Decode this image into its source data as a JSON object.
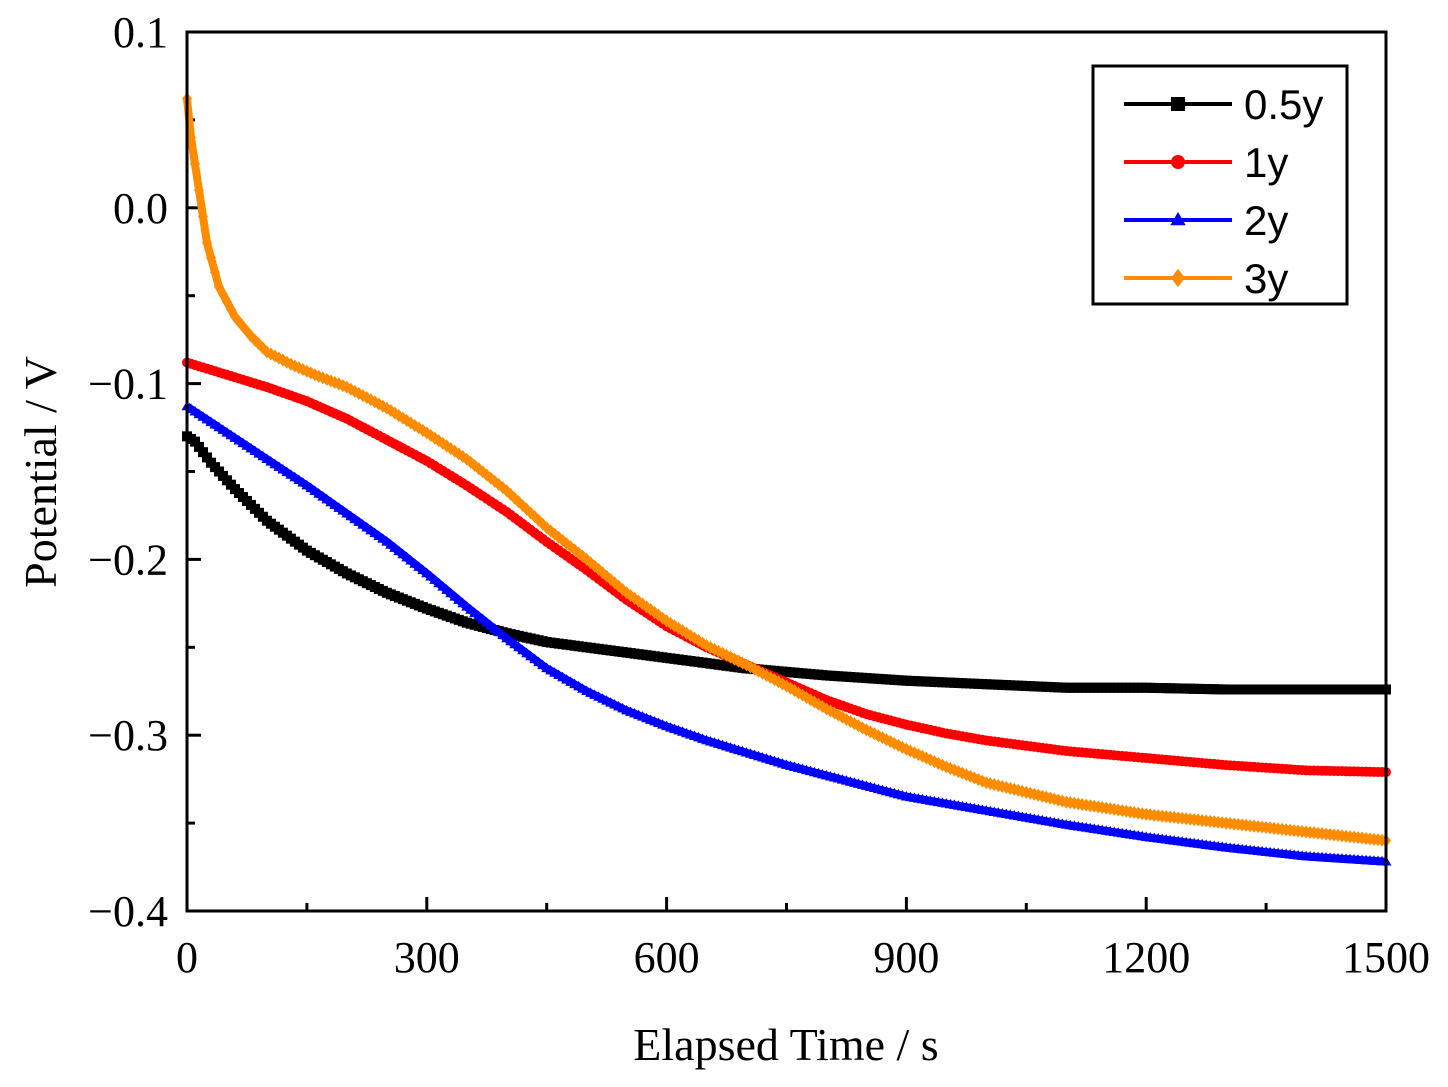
{
  "chart_data": {
    "type": "line",
    "title": "",
    "xlabel": "Elapsed Time / s",
    "ylabel": "Potential / V",
    "xlim": [
      0,
      1500
    ],
    "ylim": [
      -0.4,
      0.1
    ],
    "xticks": [
      0,
      300,
      600,
      900,
      1200,
      1500
    ],
    "xtick_labels": [
      "0",
      "300",
      "600",
      "900",
      "1200",
      "1500"
    ],
    "yticks": [
      -0.4,
      -0.3,
      -0.2,
      -0.1,
      0.0,
      0.1
    ],
    "ytick_labels": [
      "−0.4",
      "−0.3",
      "−0.2",
      "−0.1",
      "0.0",
      "0.1"
    ],
    "grid": false,
    "legend_position": "top-right",
    "series": [
      {
        "name": "0.5y",
        "color": "#000000",
        "marker": "square",
        "x": [
          0,
          10,
          30,
          60,
          100,
          150,
          200,
          250,
          300,
          350,
          400,
          450,
          500,
          600,
          700,
          800,
          900,
          1000,
          1100,
          1200,
          1300,
          1400,
          1500
        ],
        "y": [
          -0.13,
          -0.133,
          -0.145,
          -0.16,
          -0.178,
          -0.195,
          -0.208,
          -0.219,
          -0.228,
          -0.236,
          -0.242,
          -0.247,
          -0.25,
          -0.256,
          -0.262,
          -0.266,
          -0.269,
          -0.271,
          -0.273,
          -0.273,
          -0.274,
          -0.274,
          -0.274
        ]
      },
      {
        "name": "1y",
        "color": "#ff0000",
        "marker": "circle",
        "x": [
          0,
          50,
          100,
          150,
          200,
          250,
          300,
          350,
          400,
          450,
          500,
          550,
          600,
          650,
          700,
          750,
          800,
          850,
          900,
          950,
          1000,
          1100,
          1200,
          1300,
          1400,
          1500
        ],
        "y": [
          -0.088,
          -0.095,
          -0.102,
          -0.11,
          -0.12,
          -0.132,
          -0.144,
          -0.158,
          -0.173,
          -0.19,
          -0.206,
          -0.223,
          -0.238,
          -0.25,
          -0.26,
          -0.27,
          -0.28,
          -0.288,
          -0.294,
          -0.299,
          -0.303,
          -0.309,
          -0.313,
          -0.317,
          -0.32,
          -0.321
        ]
      },
      {
        "name": "2y",
        "color": "#0000ff",
        "marker": "triangle",
        "x": [
          0,
          50,
          100,
          150,
          200,
          250,
          300,
          350,
          400,
          450,
          500,
          550,
          600,
          650,
          700,
          750,
          800,
          850,
          900,
          1000,
          1100,
          1200,
          1300,
          1400,
          1500
        ],
        "y": [
          -0.113,
          -0.128,
          -0.143,
          -0.158,
          -0.174,
          -0.19,
          -0.208,
          -0.227,
          -0.245,
          -0.262,
          -0.275,
          -0.286,
          -0.295,
          -0.303,
          -0.31,
          -0.317,
          -0.323,
          -0.329,
          -0.335,
          -0.343,
          -0.351,
          -0.358,
          -0.364,
          -0.369,
          -0.372
        ]
      },
      {
        "name": "3y",
        "color": "#ff8c00",
        "marker": "diamond",
        "x": [
          0,
          5,
          15,
          25,
          40,
          60,
          80,
          100,
          130,
          160,
          200,
          250,
          300,
          350,
          400,
          450,
          500,
          550,
          600,
          650,
          700,
          750,
          800,
          850,
          900,
          950,
          1000,
          1100,
          1200,
          1300,
          1400,
          1500
        ],
        "y": [
          0.062,
          0.04,
          0.01,
          -0.02,
          -0.045,
          -0.062,
          -0.073,
          -0.082,
          -0.089,
          -0.095,
          -0.102,
          -0.114,
          -0.128,
          -0.143,
          -0.161,
          -0.182,
          -0.2,
          -0.219,
          -0.235,
          -0.249,
          -0.26,
          -0.272,
          -0.285,
          -0.297,
          -0.308,
          -0.318,
          -0.327,
          -0.338,
          -0.345,
          -0.35,
          -0.355,
          -0.36
        ]
      }
    ]
  }
}
